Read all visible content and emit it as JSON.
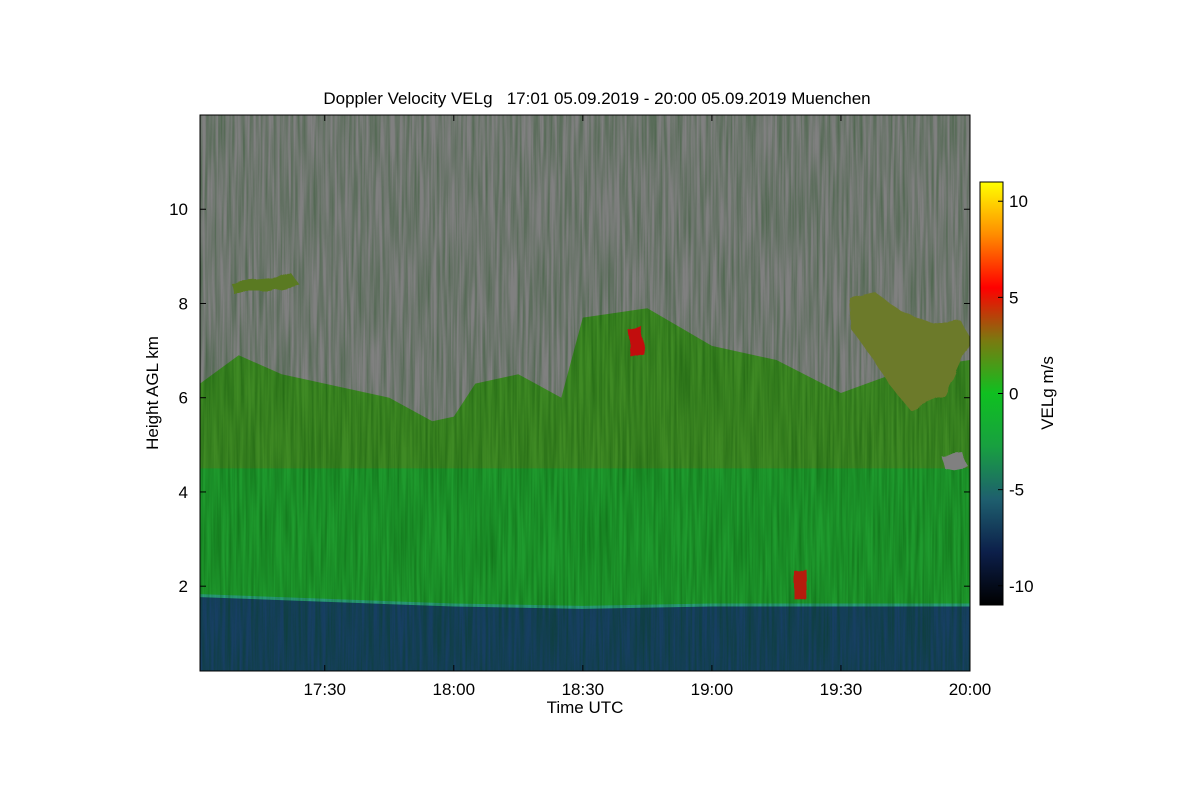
{
  "chart_data": {
    "type": "heatmap",
    "title": "Doppler Velocity VELg   17:01 05.09.2019 - 20:00 05.09.2019 Muenchen",
    "xlabel": "Time UTC",
    "ylabel": "Height AGL km",
    "colorbar_label": "VELg m/s",
    "x_range": [
      "17:01",
      "20:00"
    ],
    "x_ticks": [
      "17:30",
      "18:00",
      "18:30",
      "19:00",
      "19:30",
      "20:00"
    ],
    "y_range": [
      0.2,
      12.0
    ],
    "y_ticks": [
      2,
      4,
      6,
      8,
      10
    ],
    "colorbar_range": [
      -11,
      11
    ],
    "colorbar_ticks": [
      -10,
      -5,
      0,
      5,
      10
    ],
    "colormap": [
      "#000000",
      "#0c1f4a",
      "#1e5f6e",
      "#18a040",
      "#0fc020",
      "#7a7a10",
      "#ff0000",
      "#ff8c00",
      "#ffff00"
    ],
    "background_color": "#808080",
    "layers": [
      {
        "name": "boundary layer",
        "height_top_km": 1.6,
        "velocity_ms": -7
      },
      {
        "name": "lower cloud",
        "height_range_km": [
          1.6,
          4.5
        ],
        "velocity_ms": -2
      },
      {
        "name": "upper cloud",
        "height_range_km": [
          4.5,
          8.0
        ],
        "velocity_ms": 0
      }
    ],
    "cloud_top_profile": [
      {
        "time": "17:01",
        "height_km": 6.3
      },
      {
        "time": "17:10",
        "height_km": 6.9
      },
      {
        "time": "17:20",
        "height_km": 6.5
      },
      {
        "time": "17:30",
        "height_km": 6.3
      },
      {
        "time": "17:45",
        "height_km": 6.0
      },
      {
        "time": "17:55",
        "height_km": 5.5
      },
      {
        "time": "18:00",
        "height_km": 5.6
      },
      {
        "time": "18:05",
        "height_km": 6.3
      },
      {
        "time": "18:15",
        "height_km": 6.5
      },
      {
        "time": "18:25",
        "height_km": 6.0
      },
      {
        "time": "18:30",
        "height_km": 7.7
      },
      {
        "time": "18:45",
        "height_km": 7.9
      },
      {
        "time": "19:00",
        "height_km": 7.1
      },
      {
        "time": "19:15",
        "height_km": 6.8
      },
      {
        "time": "19:30",
        "height_km": 6.1
      },
      {
        "time": "19:45",
        "height_km": 6.6
      },
      {
        "time": "20:00",
        "height_km": 6.8
      }
    ],
    "boundary_layer_top": [
      {
        "time": "17:01",
        "height_km": 1.8
      },
      {
        "time": "17:30",
        "height_km": 1.7
      },
      {
        "time": "18:00",
        "height_km": 1.6
      },
      {
        "time": "18:30",
        "height_km": 1.55
      },
      {
        "time": "19:00",
        "height_km": 1.6
      },
      {
        "time": "19:30",
        "height_km": 1.6
      },
      {
        "time": "20:00",
        "height_km": 1.6
      }
    ],
    "grid": false
  }
}
